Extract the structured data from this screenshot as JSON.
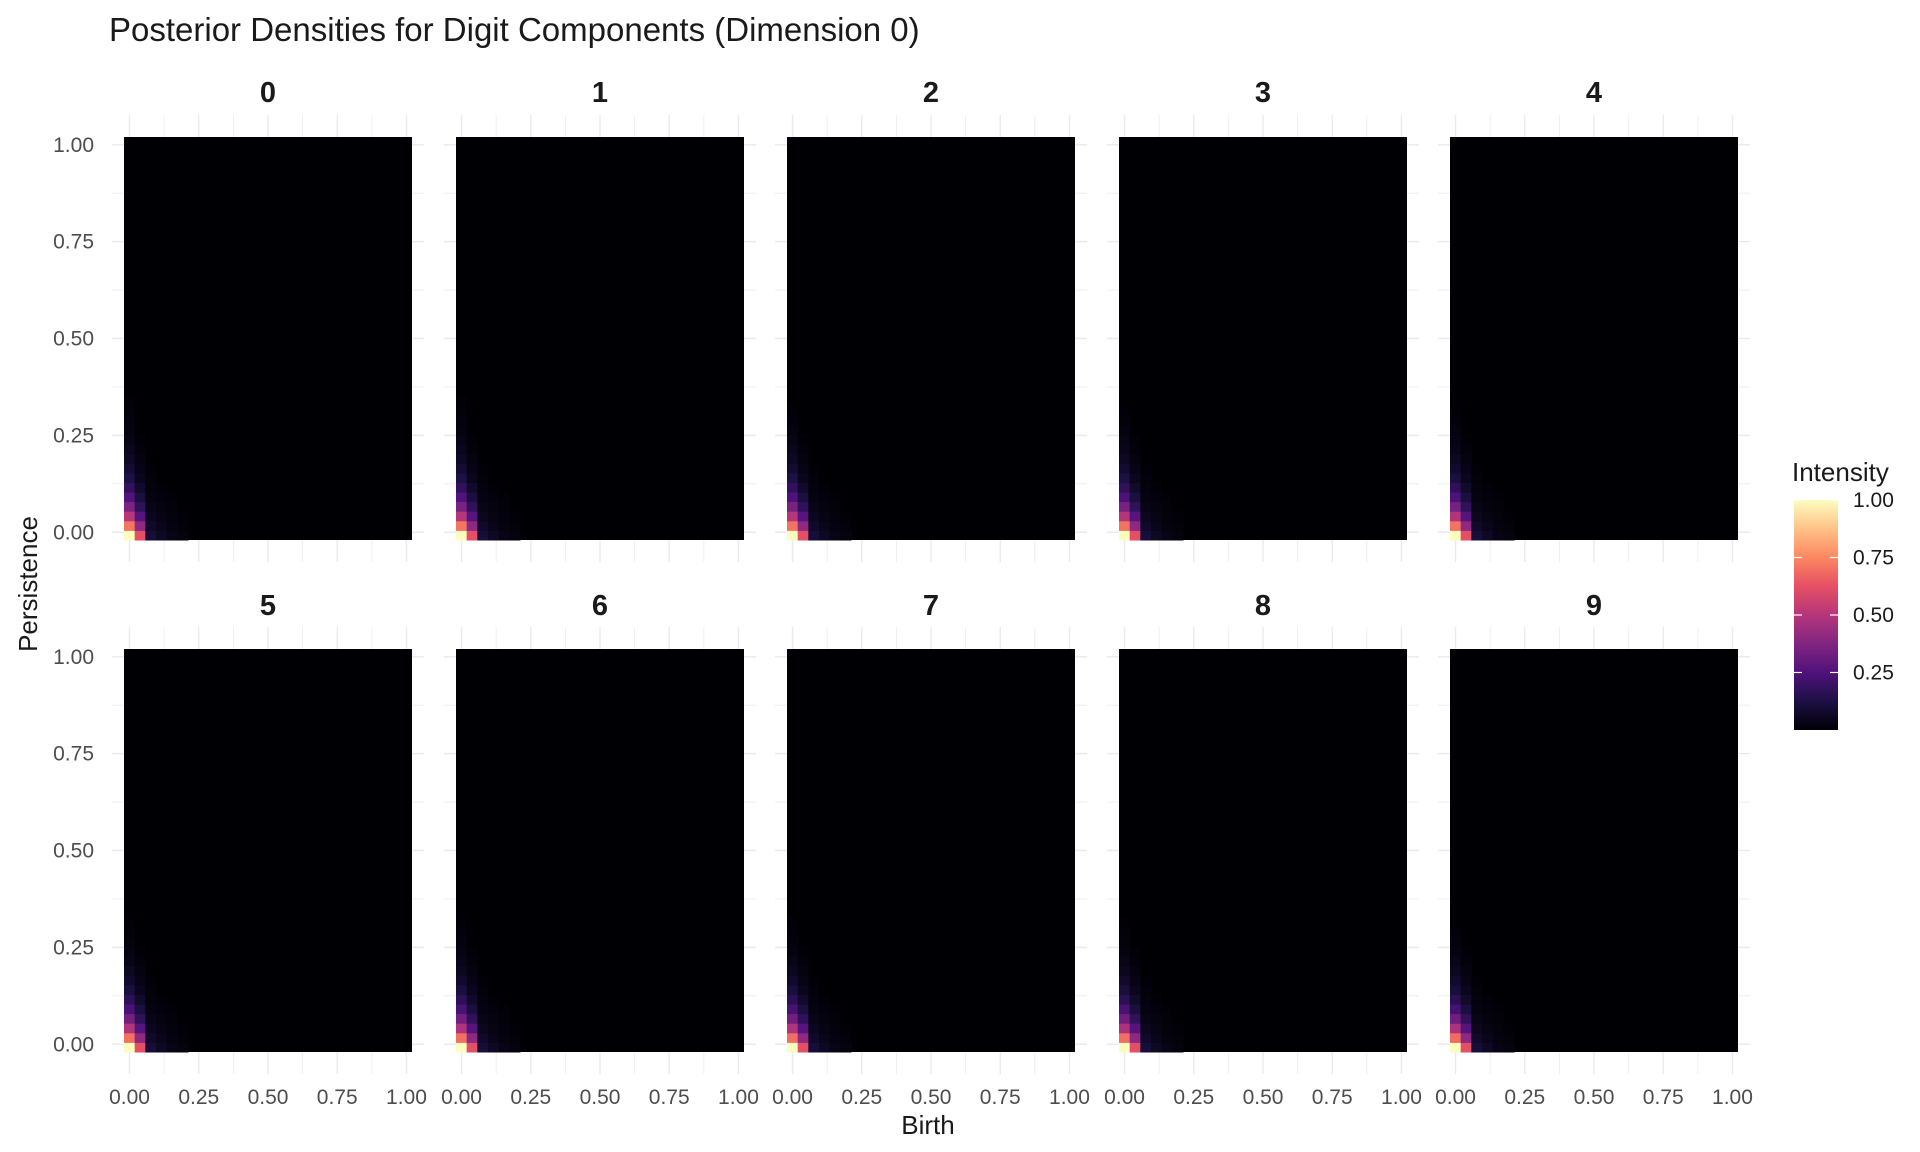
{
  "chart_data": {
    "type": "heatmap",
    "title": "Posterior Densities for Digit Components (Dimension 0)",
    "xlabel": "Birth",
    "ylabel": "Persistence",
    "xlim": [
      0,
      1
    ],
    "ylim": [
      0,
      1
    ],
    "x_ticks": [
      "0.00",
      "0.25",
      "0.50",
      "0.75",
      "1.00"
    ],
    "y_ticks": [
      "0.00",
      "0.25",
      "0.50",
      "0.75",
      "1.00"
    ],
    "facets": [
      "0",
      "1",
      "2",
      "3",
      "4",
      "5",
      "6",
      "7",
      "8",
      "9"
    ],
    "facet_layout": {
      "rows": 2,
      "cols": 5
    },
    "grid": true,
    "colormap": "magma",
    "legend": {
      "title": "Intensity",
      "position": "right",
      "ticks": [
        "0.25",
        "0.50",
        "0.75",
        "1.00"
      ],
      "colors": [
        "#000004",
        "#1c1044",
        "#4f127b",
        "#812581",
        "#b5367a",
        "#e55064",
        "#fb8761",
        "#fec287",
        "#fcfdbf"
      ]
    },
    "peak_location": {
      "birth": 0.0,
      "persistence": 0.0
    },
    "peak_value": 1.0
  }
}
